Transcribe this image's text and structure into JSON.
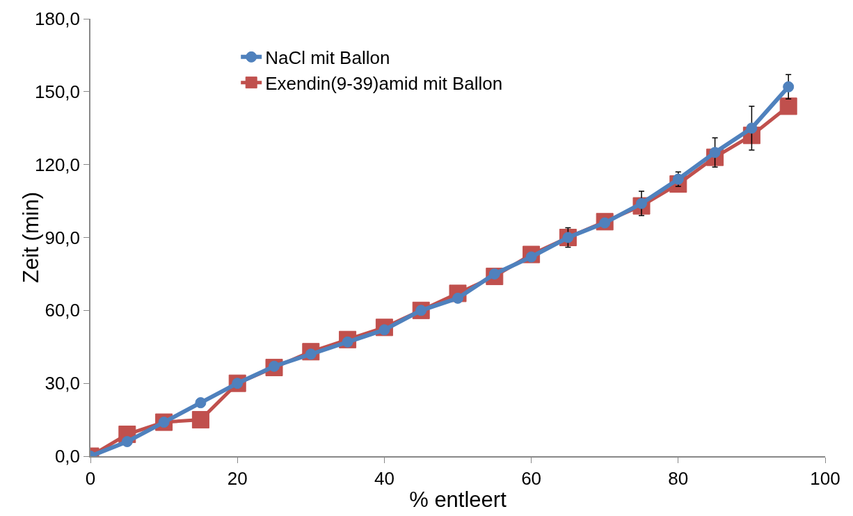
{
  "chart_data": {
    "type": "line",
    "xlabel": "% entleert",
    "ylabel": "Zeit (min)",
    "x": [
      0,
      5,
      10,
      15,
      20,
      25,
      30,
      35,
      40,
      45,
      50,
      55,
      60,
      65,
      70,
      75,
      80,
      85,
      90,
      95
    ],
    "series": [
      {
        "name": "NaCl mit Ballon",
        "color": "#4f81bd",
        "marker": "circle",
        "values": [
          0,
          6,
          14,
          22,
          30,
          37,
          42,
          47,
          52,
          60,
          65,
          75,
          82,
          90,
          96,
          104,
          114,
          125,
          135,
          152
        ],
        "errors": [
          null,
          null,
          null,
          null,
          null,
          null,
          null,
          null,
          null,
          null,
          null,
          null,
          null,
          4,
          null,
          5,
          3,
          6,
          9,
          5
        ]
      },
      {
        "name": "Exendin(9-39)amid mit Ballon",
        "color": "#c0504d",
        "marker": "square",
        "values": [
          0,
          9,
          14,
          15,
          30,
          36.5,
          43,
          48,
          53,
          60,
          67,
          74,
          83,
          90,
          96.5,
          103,
          112,
          123,
          132,
          144
        ]
      }
    ],
    "xlim": [
      0,
      100
    ],
    "xticks": [
      0,
      20,
      40,
      60,
      80,
      100
    ],
    "ylim": [
      0,
      180
    ],
    "yticks": [
      {
        "value": 0,
        "label": "0,0"
      },
      {
        "value": 30,
        "label": "30,0"
      },
      {
        "value": 60,
        "label": "60,0"
      },
      {
        "value": 90,
        "label": "90,0"
      },
      {
        "value": 120,
        "label": "120,0"
      },
      {
        "value": 150,
        "label": "150,0"
      },
      {
        "value": 180,
        "label": "180,0"
      }
    ],
    "grid": false,
    "legend": "top left",
    "line_style": "solid"
  }
}
